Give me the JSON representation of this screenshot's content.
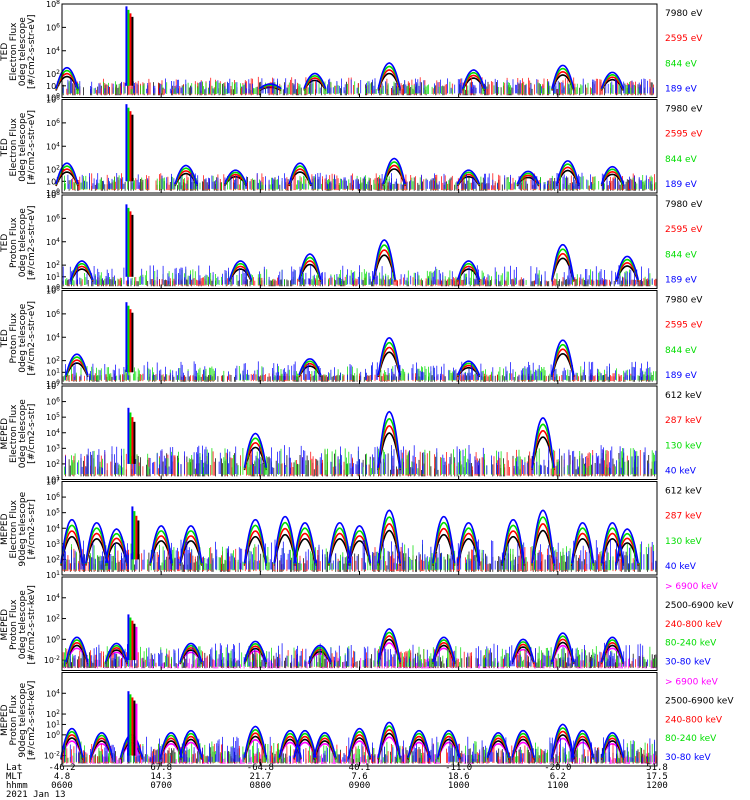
{
  "chart_data": {
    "type": "line",
    "x_axis": {
      "row_labels": [
        "Lat",
        "MLT",
        "hhmm",
        "2021 Jan 13"
      ],
      "ticks": [
        {
          "lat": "-46.2",
          "mlt": "4.8",
          "hhmm": "0600"
        },
        {
          "lat": "67.8",
          "mlt": "14.3",
          "hhmm": "0700"
        },
        {
          "lat": "-64.8",
          "mlt": "21.7",
          "hhmm": "0800"
        },
        {
          "lat": "40.1",
          "mlt": "7.6",
          "hhmm": "0900"
        },
        {
          "lat": "-11.0",
          "mlt": "18.6",
          "hhmm": "1000"
        },
        {
          "lat": "-20.0",
          "mlt": "6.2",
          "hhmm": "1100"
        },
        {
          "lat": "51.8",
          "mlt": "17.5",
          "hhmm": "1200"
        }
      ],
      "range_hours": [
        6,
        12
      ]
    },
    "panels": [
      {
        "ylabel": [
          "TED",
          "Electron Flux",
          "0deg telescope",
          "[#/cm2-s-str-eV]"
        ],
        "yticks": [
          "10^8",
          "10^6",
          "10^4",
          "10^2",
          "10^1",
          "10^0"
        ],
        "ylog": [
          0,
          8
        ],
        "legend": [
          {
            "label": "7980 eV",
            "color": "#000000"
          },
          {
            "label": "2595 eV",
            "color": "#ff0000"
          },
          {
            "label": "844 eV",
            "color": "#00dd00"
          },
          {
            "label": "189 eV",
            "color": "#0000ff"
          }
        ],
        "spike_hour": 6.66,
        "spike_top": 7.8,
        "series_peaks": [
          {
            "name": "7980 eV",
            "peak": 2.2
          },
          {
            "name": "2595 eV",
            "peak": 3.2
          },
          {
            "name": "844 eV",
            "peak": 2.0
          },
          {
            "name": "189 eV",
            "peak": 2.6
          }
        ],
        "event_hours": [
          6.05,
          8.1,
          8.55,
          9.3,
          10.15,
          11.05,
          11.55
        ],
        "event_strength": [
          1.8,
          0.4,
          1.3,
          2.2,
          1.6,
          2.0,
          1.4
        ]
      },
      {
        "ylabel": [
          "TED",
          "Electron Flux",
          "0deg telescope",
          "[#/cm2-s-str-eV]"
        ],
        "yticks": [
          "10^8",
          "10^6",
          "10^4",
          "10^2",
          "10^1",
          "10^0"
        ],
        "ylog": [
          0,
          8
        ],
        "legend": [
          {
            "label": "7980 eV",
            "color": "#000000"
          },
          {
            "label": "2595 eV",
            "color": "#ff0000"
          },
          {
            "label": "844 eV",
            "color": "#00dd00"
          },
          {
            "label": "189 eV",
            "color": "#0000ff"
          }
        ],
        "spike_hour": 6.66,
        "spike_top": 7.6,
        "series_peaks": [
          {
            "name": "7980 eV",
            "peak": 2.2
          },
          {
            "name": "2595 eV",
            "peak": 3.0
          },
          {
            "name": "844 eV",
            "peak": 2.4
          },
          {
            "name": "189 eV",
            "peak": 2.8
          }
        ],
        "event_hours": [
          6.05,
          7.25,
          7.75,
          8.4,
          9.35,
          10.1,
          10.7,
          11.1,
          11.55
        ],
        "event_strength": [
          1.8,
          1.6,
          1.2,
          1.8,
          2.2,
          1.2,
          1.1,
          2.0,
          1.5
        ]
      },
      {
        "ylabel": [
          "TED",
          "Proton Flux",
          "0deg telescope",
          "[#/cm2-s-str-eV]"
        ],
        "yticks": [
          "10^8",
          "10^6",
          "10^4",
          "10^2",
          "10^1",
          "10^0"
        ],
        "ylog": [
          0,
          8
        ],
        "legend": [
          {
            "label": "7980 eV",
            "color": "#000000"
          },
          {
            "label": "2595 eV",
            "color": "#ff0000"
          },
          {
            "label": "844 eV",
            "color": "#00dd00"
          },
          {
            "label": "189 eV",
            "color": "#0000ff"
          }
        ],
        "spike_hour": 6.66,
        "spike_top": 7.2,
        "series_peaks": [
          {
            "name": "7980 eV",
            "peak": 0.6
          },
          {
            "name": "2595 eV",
            "peak": 1.0
          },
          {
            "name": "844 eV",
            "peak": 2.8
          },
          {
            "name": "189 eV",
            "peak": 3.6
          }
        ],
        "event_hours": [
          6.2,
          7.8,
          8.5,
          9.25,
          10.1,
          11.05,
          11.7
        ],
        "event_strength": [
          1.6,
          1.6,
          2.2,
          3.4,
          1.6,
          3.0,
          2.0
        ]
      },
      {
        "ylabel": [
          "TED",
          "Proton Flux",
          "0deg telescope",
          "[#/cm2-s-str-eV]"
        ],
        "yticks": [
          "10^8",
          "10^6",
          "10^4",
          "10^2",
          "10^1",
          "10^0"
        ],
        "ylog": [
          0,
          8
        ],
        "legend": [
          {
            "label": "7980 eV",
            "color": "#000000"
          },
          {
            "label": "2595 eV",
            "color": "#ff0000"
          },
          {
            "label": "844 eV",
            "color": "#00dd00"
          },
          {
            "label": "189 eV",
            "color": "#0000ff"
          }
        ],
        "spike_hour": 6.66,
        "spike_top": 7.0,
        "series_peaks": [
          {
            "name": "7980 eV",
            "peak": 0.5
          },
          {
            "name": "2595 eV",
            "peak": 0.8
          },
          {
            "name": "844 eV",
            "peak": 2.4
          },
          {
            "name": "189 eV",
            "peak": 3.4
          }
        ],
        "event_hours": [
          6.15,
          8.5,
          9.3,
          10.1,
          11.05
        ],
        "event_strength": [
          1.8,
          1.4,
          3.2,
          1.2,
          3.0
        ]
      },
      {
        "ylabel": [
          "MEPED",
          "Electron Flux",
          "0deg telescope",
          "[#/cm2-s-str]"
        ],
        "yticks": [
          "10^7",
          "10^6",
          "10^5",
          "10^4",
          "10^3",
          "10^2",
          "10^1"
        ],
        "ylog": [
          1,
          7
        ],
        "legend": [
          {
            "label": "612 keV",
            "color": "#000000"
          },
          {
            "label": "287 keV",
            "color": "#ff0000"
          },
          {
            "label": "130 keV",
            "color": "#00dd00"
          },
          {
            "label": "40 keV",
            "color": "#0000ff"
          }
        ],
        "spike_hour": 6.68,
        "spike_top": 5.6,
        "series_peaks": [
          {
            "name": "612 keV",
            "peak": 4.2
          },
          {
            "name": "287 keV",
            "peak": 4.6
          },
          {
            "name": "130 keV",
            "peak": 4.8
          },
          {
            "name": "40 keV",
            "peak": 5.2
          }
        ],
        "event_hours": [
          7.95,
          9.3,
          10.85
        ],
        "event_strength": [
          2.2,
          3.6,
          3.2
        ]
      },
      {
        "ylabel": [
          "MEPED",
          "Electron Flux",
          "90deg telescope",
          "[#/cm2-s-str]"
        ],
        "yticks": [
          "10^7",
          "10^6",
          "10^5",
          "10^4",
          "10^3",
          "10^2",
          "10^1"
        ],
        "ylog": [
          1,
          7
        ],
        "legend": [
          {
            "label": "612 keV",
            "color": "#000000"
          },
          {
            "label": "287 keV",
            "color": "#ff0000"
          },
          {
            "label": "130 keV",
            "color": "#00dd00"
          },
          {
            "label": "40 keV",
            "color": "#0000ff"
          }
        ],
        "spike_hour": 6.72,
        "spike_top": 5.4,
        "series_peaks": [
          {
            "name": "612 keV",
            "peak": 3.6
          },
          {
            "name": "287 keV",
            "peak": 4.4
          },
          {
            "name": "130 keV",
            "peak": 4.8
          },
          {
            "name": "40 keV",
            "peak": 5.4
          }
        ],
        "event_hours": [
          6.1,
          6.35,
          6.55,
          7.0,
          7.3,
          7.95,
          8.25,
          8.45,
          8.8,
          9.0,
          9.3,
          9.85,
          10.1,
          10.55,
          10.85,
          11.25,
          11.55,
          11.7
        ],
        "event_strength": [
          2.8,
          2.6,
          2.2,
          2.4,
          2.4,
          2.8,
          3.0,
          2.6,
          2.6,
          2.4,
          3.4,
          3.0,
          2.6,
          2.8,
          3.4,
          2.6,
          2.6,
          2.2
        ]
      },
      {
        "ylabel": [
          "MEPED",
          "Proton Flux",
          "0deg telescope",
          "[#/cm2-s-str-keV]"
        ],
        "yticks": [
          "10^4",
          "10^2",
          "10^0",
          "10^-2"
        ],
        "ylog": [
          -3,
          6
        ],
        "legend": [
          {
            "label": "> 6900 keV",
            "color": "#ff00ff"
          },
          {
            "label": "2500-6900 keV",
            "color": "#000000"
          },
          {
            "label": "240-800 keV",
            "color": "#ff0000"
          },
          {
            "label": "80-240 keV",
            "color": "#00dd00"
          },
          {
            "label": "30-80 keV",
            "color": "#0000ff"
          }
        ],
        "spike_hour": 6.68,
        "spike_top": 2.4,
        "series_peaks": [
          {
            "name": "> 6900 keV",
            "peak": -1.2
          },
          {
            "name": "2500-6900 keV",
            "peak": 0.2
          },
          {
            "name": "240-800 keV",
            "peak": 1.0
          },
          {
            "name": "80-240 keV",
            "peak": 1.6
          },
          {
            "name": "30-80 keV",
            "peak": 2.4
          }
        ],
        "event_hours": [
          6.15,
          6.55,
          7.3,
          7.95,
          8.6,
          9.3,
          9.85,
          10.65,
          11.05,
          11.55
        ],
        "event_strength": [
          2.4,
          1.8,
          1.8,
          2.0,
          1.6,
          3.2,
          2.4,
          2.2,
          2.8,
          2.4
        ]
      },
      {
        "ylabel": [
          "MEPED",
          "Proton Flux",
          "90deg telescope",
          "[#/cm2-s-str-keV]"
        ],
        "yticks": [
          "10^4",
          "10^2",
          "10^1",
          "10^0",
          "10^-2"
        ],
        "ylog": [
          -3,
          6
        ],
        "legend": [
          {
            "label": "> 6900 keV",
            "color": "#ff00ff"
          },
          {
            "label": "2500-6900 keV",
            "color": "#000000"
          },
          {
            "label": "240-800 keV",
            "color": "#ff0000"
          },
          {
            "label": "80-240 keV",
            "color": "#00dd00"
          },
          {
            "label": "30-80 keV",
            "color": "#0000ff"
          }
        ],
        "spike_hour": 6.68,
        "spike_top": 4.2,
        "series_peaks": [
          {
            "name": "> 6900 keV",
            "peak": -1.2
          },
          {
            "name": "2500-6900 keV",
            "peak": 0.4
          },
          {
            "name": "240-800 keV",
            "peak": 1.2
          },
          {
            "name": "80-240 keV",
            "peak": 1.8
          },
          {
            "name": "30-80 keV",
            "peak": 2.8
          }
        ],
        "event_hours": [
          6.1,
          6.4,
          6.7,
          7.1,
          7.3,
          7.95,
          8.3,
          8.45,
          8.65,
          9.0,
          9.3,
          9.6,
          9.9,
          10.4,
          10.65,
          11.05,
          11.25,
          11.55
        ],
        "event_strength": [
          2.8,
          2.4,
          2.2,
          2.4,
          2.6,
          3.0,
          2.6,
          2.6,
          2.4,
          2.8,
          3.4,
          2.6,
          2.6,
          2.4,
          2.6,
          3.2,
          2.6,
          2.4
        ]
      }
    ]
  }
}
